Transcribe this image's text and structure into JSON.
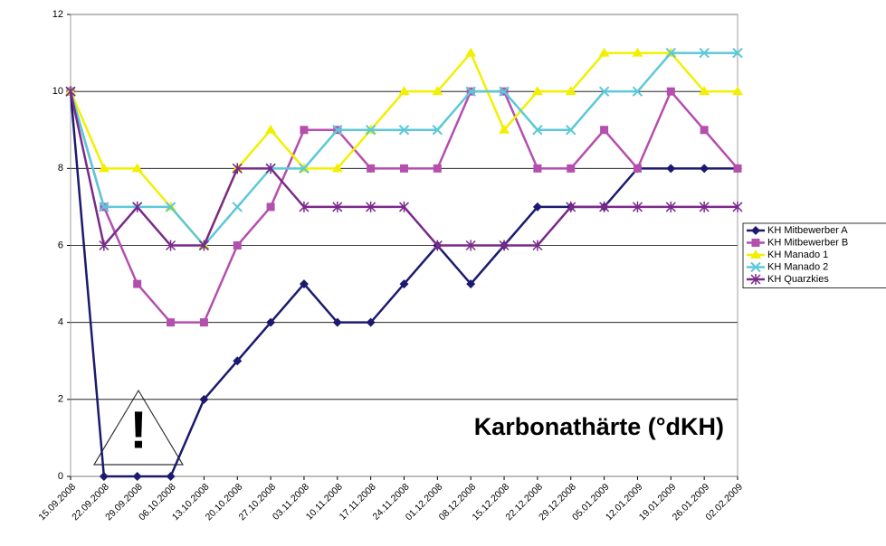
{
  "chart_data": {
    "type": "line",
    "annotation": "Karbonathärte (°dKH)",
    "categories": [
      "15.09.2008",
      "22.09.2008",
      "29.09.2008",
      "06.10.2008",
      "13.10.2008",
      "20.10.2008",
      "27.10.2008",
      "03.11.2008",
      "10.11.2008",
      "17.11.2008",
      "24.11.2008",
      "01.12.2008",
      "08.12.2008",
      "15.12.2008",
      "22.12.2008",
      "29.12.2008",
      "05.01.2009",
      "12.01.2009",
      "19.01.2009",
      "26.01.2009",
      "02.02.2009"
    ],
    "series": [
      {
        "name": "KH Mitbewerber A",
        "color": "#1c1a6e",
        "marker": "diamond",
        "values": [
          10,
          0,
          0,
          0,
          2,
          3,
          4,
          5,
          4,
          4,
          5,
          6,
          5,
          6,
          7,
          7,
          7,
          8,
          8,
          8,
          8
        ]
      },
      {
        "name": "KH Mitbewerber B",
        "color": "#b44fae",
        "marker": "square",
        "values": [
          10,
          7,
          5,
          4,
          4,
          6,
          7,
          9,
          9,
          8,
          8,
          8,
          10,
          10,
          8,
          8,
          9,
          8,
          10,
          9,
          8
        ]
      },
      {
        "name": "KH Manado 1",
        "color": "#f2f000",
        "marker": "triangle",
        "values": [
          10,
          8,
          8,
          7,
          6,
          8,
          9,
          8,
          8,
          9,
          10,
          10,
          11,
          9,
          10,
          10,
          11,
          11,
          11,
          10,
          10
        ]
      },
      {
        "name": "KH Manado 2",
        "color": "#5cc8d8",
        "marker": "x",
        "values": [
          10,
          7,
          7,
          7,
          6,
          7,
          8,
          8,
          9,
          9,
          9,
          9,
          10,
          10,
          9,
          9,
          10,
          10,
          11,
          11,
          11
        ]
      },
      {
        "name": "KH Quarzkies",
        "color": "#7a2a8a",
        "marker": "star",
        "values": [
          10,
          6,
          7,
          6,
          6,
          8,
          8,
          7,
          7,
          7,
          7,
          6,
          6,
          6,
          6,
          7,
          7,
          7,
          7,
          7,
          7
        ]
      }
    ],
    "ylim": [
      0,
      12
    ],
    "yticks": [
      0,
      2,
      4,
      6,
      8,
      10,
      12
    ],
    "grid": true,
    "legend": "right"
  }
}
